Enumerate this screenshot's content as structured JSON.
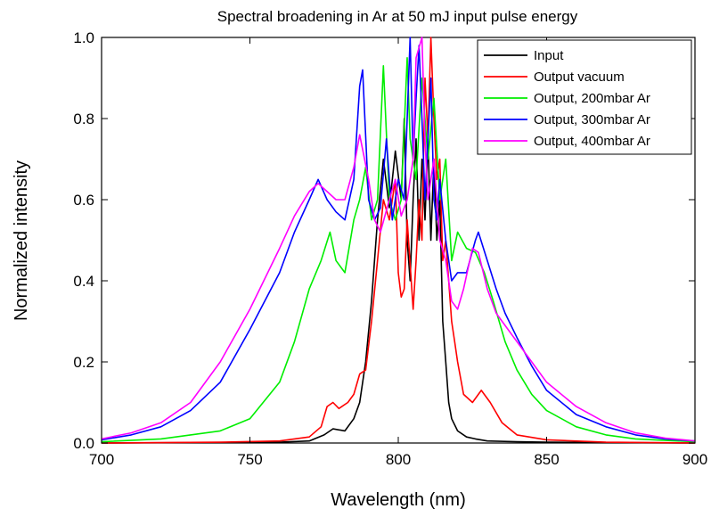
{
  "chart_data": {
    "type": "line",
    "title": "Spectral broadening in Ar at 50 mJ input pulse energy",
    "xlabel": "Wavelength (nm)",
    "ylabel": "Normalized intensity",
    "xlim": [
      700,
      900
    ],
    "ylim": [
      0,
      1.0
    ],
    "xticks": [
      700,
      750,
      800,
      850,
      900
    ],
    "xtick_labels": [
      "700",
      "750",
      "800",
      "850",
      "900"
    ],
    "yticks": [
      0,
      0.2,
      0.4,
      0.6,
      0.8,
      1.0
    ],
    "ytick_labels": [
      "0.0",
      "0.2",
      "0.4",
      "0.6",
      "0.8",
      "1.0"
    ],
    "grid": false,
    "legend_position": "top-right",
    "series": [
      {
        "name": "Input",
        "color": "#000000",
        "x": [
          700,
          760,
          770,
          775,
          778,
          782,
          785,
          787,
          789,
          791,
          793,
          795,
          797,
          799,
          801,
          802,
          803,
          804,
          805,
          806,
          807,
          808,
          809,
          810,
          811,
          812,
          813,
          814,
          815,
          816,
          817,
          818,
          820,
          823,
          826,
          830,
          840,
          850,
          900
        ],
        "y": [
          0,
          0.002,
          0.005,
          0.02,
          0.035,
          0.03,
          0.06,
          0.1,
          0.2,
          0.35,
          0.55,
          0.7,
          0.58,
          0.72,
          0.6,
          0.8,
          0.5,
          0.4,
          0.6,
          0.75,
          0.5,
          0.7,
          0.55,
          0.75,
          0.5,
          0.7,
          0.5,
          0.6,
          0.3,
          0.2,
          0.1,
          0.06,
          0.03,
          0.015,
          0.01,
          0.005,
          0.003,
          0.002,
          0
        ]
      },
      {
        "name": "Output vacuum",
        "color": "#ff0000",
        "x": [
          700,
          740,
          760,
          770,
          774,
          776,
          778,
          780,
          783,
          785,
          787,
          789,
          791,
          793,
          795,
          797,
          799,
          800,
          801,
          802,
          803,
          805,
          806,
          807,
          808,
          809,
          810,
          811,
          812,
          813,
          814,
          815,
          816,
          817,
          818,
          819,
          820,
          822,
          825,
          828,
          831,
          835,
          840,
          850,
          870,
          900
        ],
        "y": [
          0,
          0.002,
          0.005,
          0.015,
          0.04,
          0.09,
          0.1,
          0.085,
          0.1,
          0.12,
          0.17,
          0.18,
          0.3,
          0.45,
          0.6,
          0.55,
          0.65,
          0.42,
          0.36,
          0.38,
          0.55,
          0.33,
          0.45,
          0.6,
          0.5,
          0.9,
          0.75,
          1.0,
          0.8,
          0.65,
          0.7,
          0.45,
          0.5,
          0.4,
          0.3,
          0.25,
          0.2,
          0.12,
          0.1,
          0.13,
          0.1,
          0.05,
          0.02,
          0.008,
          0.002,
          0
        ]
      },
      {
        "name": "Output, 200mbar Ar",
        "color": "#00ee00",
        "x": [
          700,
          720,
          740,
          750,
          760,
          765,
          770,
          774,
          777,
          779,
          782,
          785,
          787,
          789,
          791,
          793,
          795,
          797,
          799,
          801,
          803,
          804,
          806,
          808,
          810,
          812,
          814,
          816,
          818,
          820,
          823,
          826,
          829,
          832,
          836,
          840,
          845,
          850,
          860,
          870,
          880,
          900
        ],
        "y": [
          0.003,
          0.01,
          0.03,
          0.06,
          0.15,
          0.25,
          0.38,
          0.45,
          0.52,
          0.45,
          0.42,
          0.55,
          0.6,
          0.68,
          0.55,
          0.6,
          0.93,
          0.6,
          0.55,
          0.6,
          0.95,
          0.75,
          0.65,
          0.9,
          0.7,
          0.85,
          0.6,
          0.7,
          0.45,
          0.52,
          0.48,
          0.47,
          0.42,
          0.35,
          0.25,
          0.18,
          0.12,
          0.08,
          0.04,
          0.02,
          0.01,
          0.003
        ]
      },
      {
        "name": "Output, 300mbar Ar",
        "color": "#0000ff",
        "x": [
          700,
          710,
          720,
          730,
          740,
          750,
          760,
          765,
          770,
          773,
          776,
          779,
          782,
          785,
          787,
          788,
          790,
          792,
          794,
          796,
          798,
          800,
          802,
          804,
          805,
          806,
          807,
          808,
          809,
          810,
          811,
          812,
          813,
          814,
          816,
          818,
          820,
          823,
          826,
          827,
          830,
          833,
          836,
          840,
          845,
          850,
          860,
          870,
          880,
          890,
          900
        ],
        "y": [
          0.008,
          0.02,
          0.04,
          0.08,
          0.15,
          0.28,
          0.42,
          0.52,
          0.6,
          0.65,
          0.6,
          0.57,
          0.55,
          0.65,
          0.88,
          0.92,
          0.6,
          0.55,
          0.58,
          0.75,
          0.55,
          0.65,
          0.6,
          1.0,
          0.7,
          0.85,
          0.98,
          0.8,
          0.6,
          0.75,
          0.9,
          0.6,
          0.55,
          0.65,
          0.5,
          0.4,
          0.42,
          0.42,
          0.5,
          0.52,
          0.45,
          0.38,
          0.32,
          0.26,
          0.19,
          0.13,
          0.07,
          0.04,
          0.02,
          0.01,
          0.005
        ]
      },
      {
        "name": "Output, 400mbar Ar",
        "color": "#ff00ff",
        "x": [
          700,
          710,
          720,
          730,
          740,
          750,
          760,
          765,
          770,
          773,
          776,
          779,
          782,
          785,
          787,
          790,
          792,
          794,
          797,
          799,
          801,
          803,
          805,
          806,
          808,
          809,
          810,
          812,
          814,
          816,
          818,
          820,
          822,
          825,
          827,
          830,
          833,
          836,
          840,
          845,
          850,
          860,
          870,
          880,
          890,
          900
        ],
        "y": [
          0.01,
          0.025,
          0.05,
          0.1,
          0.2,
          0.33,
          0.48,
          0.56,
          0.62,
          0.64,
          0.62,
          0.6,
          0.6,
          0.68,
          0.76,
          0.65,
          0.55,
          0.52,
          0.6,
          0.65,
          0.56,
          0.6,
          0.7,
          0.95,
          1.0,
          0.75,
          0.6,
          0.7,
          0.5,
          0.45,
          0.35,
          0.33,
          0.38,
          0.48,
          0.47,
          0.38,
          0.32,
          0.29,
          0.25,
          0.2,
          0.15,
          0.09,
          0.05,
          0.025,
          0.012,
          0.005
        ]
      }
    ]
  }
}
